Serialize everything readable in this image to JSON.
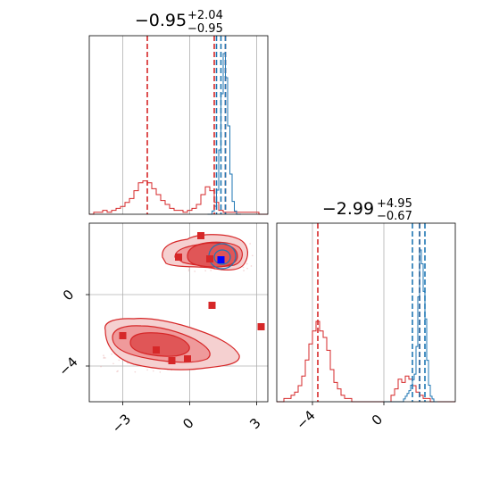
{
  "chart_data": {
    "type": "corner",
    "colors": {
      "red": "#d62728",
      "blue": "#1f77b4",
      "grid": "#b0b0b0"
    },
    "panels": [
      {
        "id": "marginal-x",
        "type": "histogram",
        "title": {
          "base": "−0.95",
          "sup": "+2.04",
          "sub": "−0.95"
        },
        "xlim": [
          -4.5,
          3.5
        ],
        "grid_x": [
          -3,
          0,
          3
        ],
        "series": [
          {
            "name": "red",
            "bins_start": -4.5,
            "bin_width": 0.2,
            "counts": [
              0,
              0.01,
              0.01,
              0.02,
              0.01,
              0.02,
              0.03,
              0.04,
              0.06,
              0.08,
              0.12,
              0.16,
              0.17,
              0.16,
              0.13,
              0.1,
              0.07,
              0.05,
              0.03,
              0.02,
              0.02,
              0.01,
              0.02,
              0.03,
              0.05,
              0.1,
              0.14,
              0.12,
              0.06,
              0.02,
              0.01,
              0.01,
              0.01,
              0.01,
              0.01,
              0.01,
              0.01,
              0.01,
              0,
              0
            ],
            "quantile_lines": [
              -1.9,
              1.1,
              1.6
            ]
          },
          {
            "name": "blue",
            "bins_start": 0.8,
            "bin_width": 0.1,
            "counts": [
              0,
              0,
              0.02,
              0.05,
              0.15,
              0.4,
              0.75,
              1.0,
              0.85,
              0.55,
              0.25,
              0.08,
              0.02,
              0,
              0
            ],
            "quantile_lines": [
              1.2,
              1.4,
              1.6
            ]
          }
        ]
      },
      {
        "id": "joint",
        "type": "contour",
        "xlim": [
          -4.5,
          3.5
        ],
        "ylim": [
          -6,
          4
        ],
        "x_ticks": [
          "−3",
          "0",
          "3"
        ],
        "x_tick_values": [
          -3,
          0,
          3
        ],
        "y_ticks": [
          "0",
          "−4"
        ],
        "y_tick_values": [
          0,
          -4
        ],
        "points_red": [
          [
            0.5,
            3.3
          ],
          [
            -0.5,
            2.1
          ],
          [
            0.9,
            2.0
          ],
          [
            1.0,
            -0.6
          ],
          [
            -3.0,
            -2.3
          ],
          [
            -1.5,
            -3.1
          ],
          [
            -0.8,
            -3.7
          ],
          [
            -0.1,
            -3.6
          ],
          [
            3.2,
            -1.8
          ]
        ],
        "points_blue": [
          [
            1.4,
            1.95
          ]
        ]
      },
      {
        "id": "marginal-y",
        "type": "histogram",
        "title": {
          "base": "−2.99",
          "sup": "+4.95",
          "sub": "−0.67"
        },
        "xlim": [
          -6,
          4
        ],
        "x_ticks": [
          "−4",
          "0"
        ],
        "x_tick_values": [
          -4,
          0
        ],
        "series": [
          {
            "name": "red",
            "bins_start": -6,
            "bin_width": 0.2,
            "counts": [
              0,
              0,
              0.01,
              0.01,
              0.02,
              0.03,
              0.05,
              0.08,
              0.13,
              0.18,
              0.22,
              0.25,
              0.22,
              0.2,
              0.16,
              0.1,
              0.06,
              0.04,
              0.02,
              0.01,
              0.01,
              0,
              0,
              0,
              0,
              0,
              0,
              0,
              0,
              0,
              0,
              0,
              0.02,
              0.04,
              0.07,
              0.06,
              0.08,
              0.07,
              0.05,
              0.03,
              0.02,
              0.01,
              0.01,
              0,
              0,
              0,
              0,
              0,
              0,
              0
            ],
            "quantile_lines": [
              -3.7,
              2.0
            ]
          },
          {
            "name": "blue",
            "bins_start": 0,
            "bin_width": 0.1,
            "counts": [
              0,
              0,
              0,
              0,
              0,
              0,
              0,
              0,
              0,
              0,
              0,
              0.01,
              0.02,
              0.03,
              0.04,
              0.06,
              0.08,
              0.1,
              0.2,
              0.38,
              0.55,
              0.5,
              0.4,
              0.3,
              0.15,
              0.06,
              0.02,
              0.01,
              0,
              0
            ],
            "quantile_lines": [
              1.6,
              2.0,
              2.3
            ]
          }
        ]
      }
    ]
  }
}
